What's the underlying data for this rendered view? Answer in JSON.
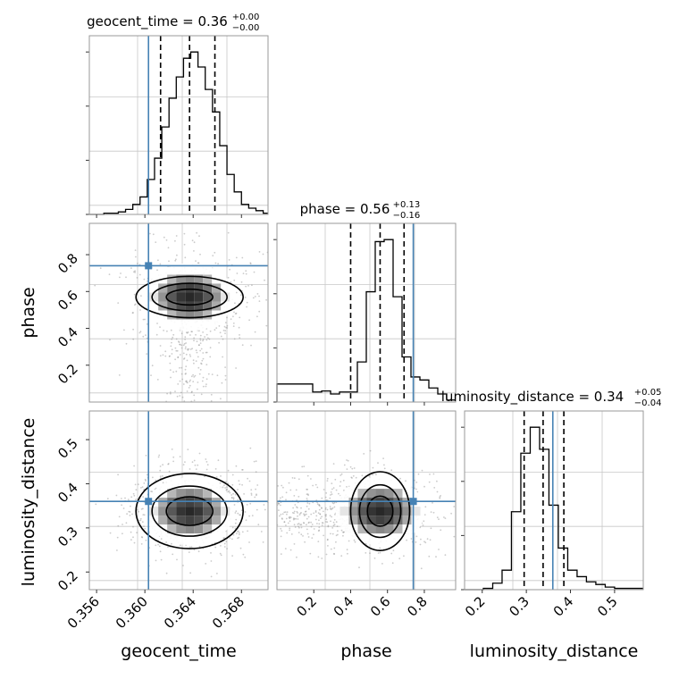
{
  "chart_data": [
    {
      "type": "histogram",
      "panel": "geocent_time-1d",
      "title": {
        "main": "geocent_time = 0.36",
        "sup": "+0.00",
        "sub": "−0.00"
      },
      "xlim": [
        0.3554,
        0.3702
      ],
      "bins_x": [
        0.3554,
        0.356,
        0.3566,
        0.3572,
        0.3578,
        0.3584,
        0.359,
        0.3596,
        0.3602,
        0.3608,
        0.3614,
        0.362,
        0.3626,
        0.3632,
        0.3638,
        0.3644,
        0.365,
        0.3656,
        0.3662,
        0.3668,
        0.3674,
        0.368,
        0.3686,
        0.3692,
        0.3698,
        0.3702
      ],
      "counts": [
        0,
        0,
        1,
        1,
        2,
        4,
        8,
        14,
        28,
        45,
        70,
        93,
        110,
        125,
        130,
        118,
        100,
        82,
        55,
        32,
        18,
        8,
        5,
        3,
        1
      ],
      "quantiles": [
        0.3613,
        0.3637,
        0.3658
      ],
      "truth": 0.3603,
      "xticks": [
        "0.356",
        "0.360",
        "0.364",
        "0.368"
      ],
      "xtick_values": [
        0.356,
        0.36,
        0.364,
        0.368
      ]
    },
    {
      "type": "histogram",
      "panel": "phase-1d",
      "title": {
        "main": "phase = 0.56",
        "sup": "+0.13",
        "sub": "−0.16"
      },
      "xlim": [
        0.0,
        0.97
      ],
      "bins_x": [
        0.0,
        0.0485,
        0.097,
        0.1455,
        0.194,
        0.2425,
        0.291,
        0.3395,
        0.388,
        0.4365,
        0.485,
        0.5335,
        0.582,
        0.6305,
        0.679,
        0.7275,
        0.776,
        0.8245,
        0.873,
        0.9215,
        0.97
      ],
      "counts": [
        18,
        18,
        18,
        18,
        10,
        11,
        8,
        10,
        10,
        40,
        110,
        160,
        162,
        105,
        45,
        25,
        22,
        14,
        8,
        2
      ],
      "quantiles": [
        0.4,
        0.56,
        0.69
      ],
      "truth": 0.74,
      "xticks": [
        "0.2",
        "0.4",
        "0.6",
        "0.8"
      ],
      "xtick_values": [
        0.2,
        0.4,
        0.6,
        0.8
      ]
    },
    {
      "type": "histogram",
      "panel": "luminosity_distance-1d",
      "title": {
        "main": "luminosity_distance = 0.34",
        "sup": "+0.05",
        "sub": "−0.04"
      },
      "xlim": [
        0.16,
        0.565
      ],
      "bins_x": [
        0.16,
        0.1812,
        0.2025,
        0.2238,
        0.245,
        0.2662,
        0.2875,
        0.3088,
        0.33,
        0.3512,
        0.3725,
        0.3938,
        0.415,
        0.4362,
        0.4575,
        0.4788,
        0.5,
        0.5212,
        0.5425,
        0.565
      ],
      "counts": [
        0,
        0,
        1,
        5,
        15,
        60,
        105,
        125,
        108,
        65,
        32,
        15,
        10,
        6,
        4,
        2,
        1,
        1,
        1
      ],
      "quantiles": [
        0.295,
        0.338,
        0.385
      ],
      "truth": 0.36,
      "xticks": [
        "0.2",
        "0.3",
        "0.4",
        "0.5"
      ],
      "xtick_values": [
        0.2,
        0.3,
        0.4,
        0.5
      ]
    },
    {
      "type": "heatmap",
      "panel": "geocent_time-phase",
      "x": "geocent_time",
      "y": "phase",
      "xlim": [
        0.3554,
        0.3702
      ],
      "ylim": [
        0.0,
        0.97
      ],
      "truth": [
        0.3603,
        0.74
      ],
      "yticks": [
        "0.2",
        "0.4",
        "0.6",
        "0.8"
      ],
      "ytick_values": [
        0.2,
        0.4,
        0.6,
        0.8
      ],
      "mode": [
        0.3637,
        0.57
      ]
    },
    {
      "type": "heatmap",
      "panel": "geocent_time-luminosity_distance",
      "x": "geocent_time",
      "y": "luminosity_distance",
      "xlim": [
        0.3554,
        0.3702
      ],
      "ylim": [
        0.16,
        0.565
      ],
      "truth": [
        0.3603,
        0.36
      ],
      "yticks": [
        "0.2",
        "0.3",
        "0.4",
        "0.5"
      ],
      "ytick_values": [
        0.2,
        0.3,
        0.4,
        0.5
      ],
      "mode": [
        0.3637,
        0.338
      ]
    },
    {
      "type": "heatmap",
      "panel": "phase-luminosity_distance",
      "x": "phase",
      "y": "luminosity_distance",
      "xlim": [
        0.0,
        0.97
      ],
      "ylim": [
        0.16,
        0.565
      ],
      "truth": [
        0.74,
        0.36
      ],
      "mode": [
        0.56,
        0.338
      ]
    }
  ],
  "labels": {
    "x": [
      "geocent_time",
      "phase",
      "luminosity_distance"
    ],
    "y": [
      "phase",
      "luminosity_distance"
    ]
  },
  "colors": {
    "truth": "#4682b4",
    "hist": "#000000",
    "quantile": "#000000",
    "grid": "#c8c8c8",
    "scatter": "#8c8c8c"
  }
}
